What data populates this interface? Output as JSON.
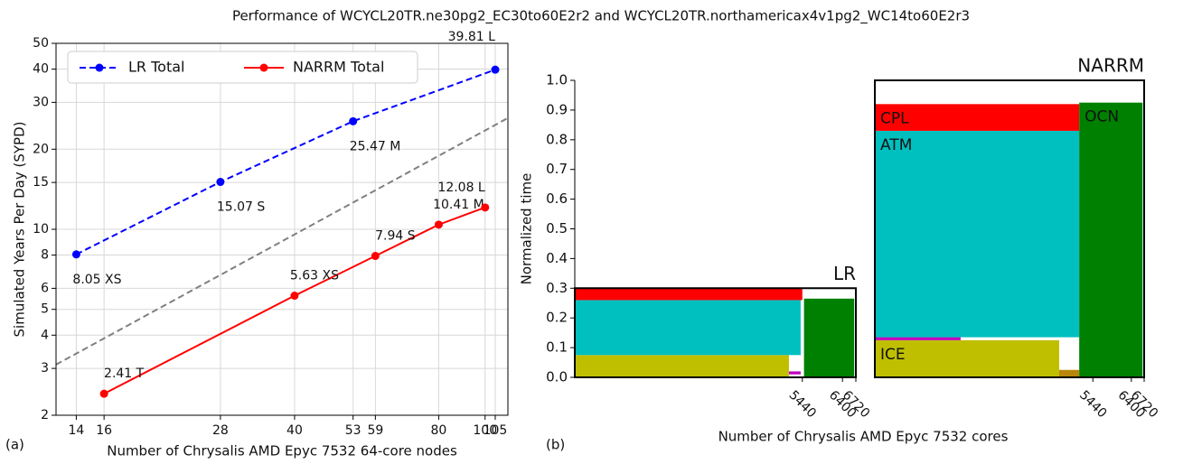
{
  "title": "Performance of WCYCL20TR.ne30pg2_EC30to60E2r2 and WCYCL20TR.northamericax4v1pg2_WC14to60E2r3",
  "chart_data": [
    {
      "type": "line",
      "panel_label": "(a)",
      "xlabel": "Number of Chrysalis AMD Epyc 7532 64-core nodes",
      "ylabel": "Simulated Years Per Day (SYPD)",
      "xscale": "log",
      "yscale": "log",
      "grid": true,
      "legend": "upper left",
      "xlim": [
        12.7,
        111.6
      ],
      "xticks": [
        14,
        16,
        28,
        40,
        53,
        59,
        80,
        100,
        105
      ],
      "ylim": [
        2,
        50
      ],
      "yticks": [
        2,
        3,
        4,
        5,
        6,
        8,
        10,
        15,
        20,
        30,
        40,
        50
      ],
      "series": [
        {
          "name": "LR Total",
          "color": "#0000ff",
          "linestyle": "dashed",
          "x": [
            14,
            28,
            53,
            105
          ],
          "values": [
            8.05,
            15.07,
            25.47,
            39.81
          ],
          "value_labels": [
            "8.05 XS",
            "15.07 S",
            "25.47 M",
            "39.81 L"
          ]
        },
        {
          "name": "NARRM Total",
          "color": "#ff0000",
          "linestyle": "solid",
          "x": [
            16,
            40,
            59,
            80,
            100
          ],
          "values": [
            2.41,
            5.63,
            7.94,
            10.41,
            12.08
          ],
          "value_labels": [
            "2.41 T",
            "5.63 XS",
            "7.94 S",
            "10.41 M",
            "12.08 L"
          ]
        }
      ],
      "reference_line": {
        "color": "#808080",
        "linestyle": "dashed",
        "x": [
          12.7,
          111.6
        ],
        "values": [
          3.1,
          26.2
        ]
      }
    },
    {
      "type": "layout",
      "panel_label": "(b)",
      "xlabel": "Number of Chrysalis AMD Epyc 7532 cores",
      "ylabel": "Normalized time",
      "ylim": [
        0,
        1
      ],
      "yticks": [
        {
          "value": 0,
          "label": "0.0"
        },
        0.1,
        0.2,
        0.3,
        0.4,
        0.5,
        0.6,
        0.7,
        0.8,
        0.9,
        {
          "value": 1,
          "label": "1.0"
        }
      ],
      "panels": [
        {
          "name": "LR",
          "xlim": [
            0,
            6720
          ],
          "xticks": [
            5440,
            6400,
            6720
          ],
          "frame_top": 0.3,
          "blocks": [
            {
              "color": "#bfbf00",
              "x": [
                0,
                5120
              ],
              "y": [
                0,
                0.075
              ]
            },
            {
              "color": "#bf00bf",
              "x": [
                5120,
                5400
              ],
              "y": [
                0.01,
                0.02
              ]
            },
            {
              "color": "#00bfbf",
              "x": [
                0,
                5400
              ],
              "y": [
                0.075,
                0.26
              ]
            },
            {
              "color": "#ff0000",
              "x": [
                0,
                5440
              ],
              "y": [
                0.26,
                0.3
              ]
            },
            {
              "color": "#008000",
              "x": [
                5480,
                6680
              ],
              "y": [
                0,
                0.265
              ]
            }
          ]
        },
        {
          "name": "NARRM",
          "xlim": [
            0,
            6720
          ],
          "xticks": [
            5440,
            6400,
            6720
          ],
          "frame_top": 1.0,
          "blocks": [
            {
              "name": "ICE",
              "color": "#bfbf00",
              "x": [
                0,
                4600
              ],
              "y": [
                0,
                0.125
              ]
            },
            {
              "color": "#b8860b",
              "x": [
                4600,
                5100
              ],
              "y": [
                0,
                0.025
              ]
            },
            {
              "color": "#bf00bf",
              "x": [
                0,
                2140
              ],
              "y": [
                0.125,
                0.135
              ]
            },
            {
              "name": "ATM",
              "color": "#00bfbf",
              "x": [
                0,
                5100
              ],
              "y": [
                0.135,
                0.83
              ]
            },
            {
              "name": "CPL",
              "color": "#ff0000",
              "x": [
                0,
                5100
              ],
              "y": [
                0.83,
                0.92
              ]
            },
            {
              "name": "OCN",
              "color": "#008000",
              "x": [
                5100,
                6680
              ],
              "y": [
                0,
                0.925
              ]
            }
          ]
        }
      ]
    }
  ]
}
